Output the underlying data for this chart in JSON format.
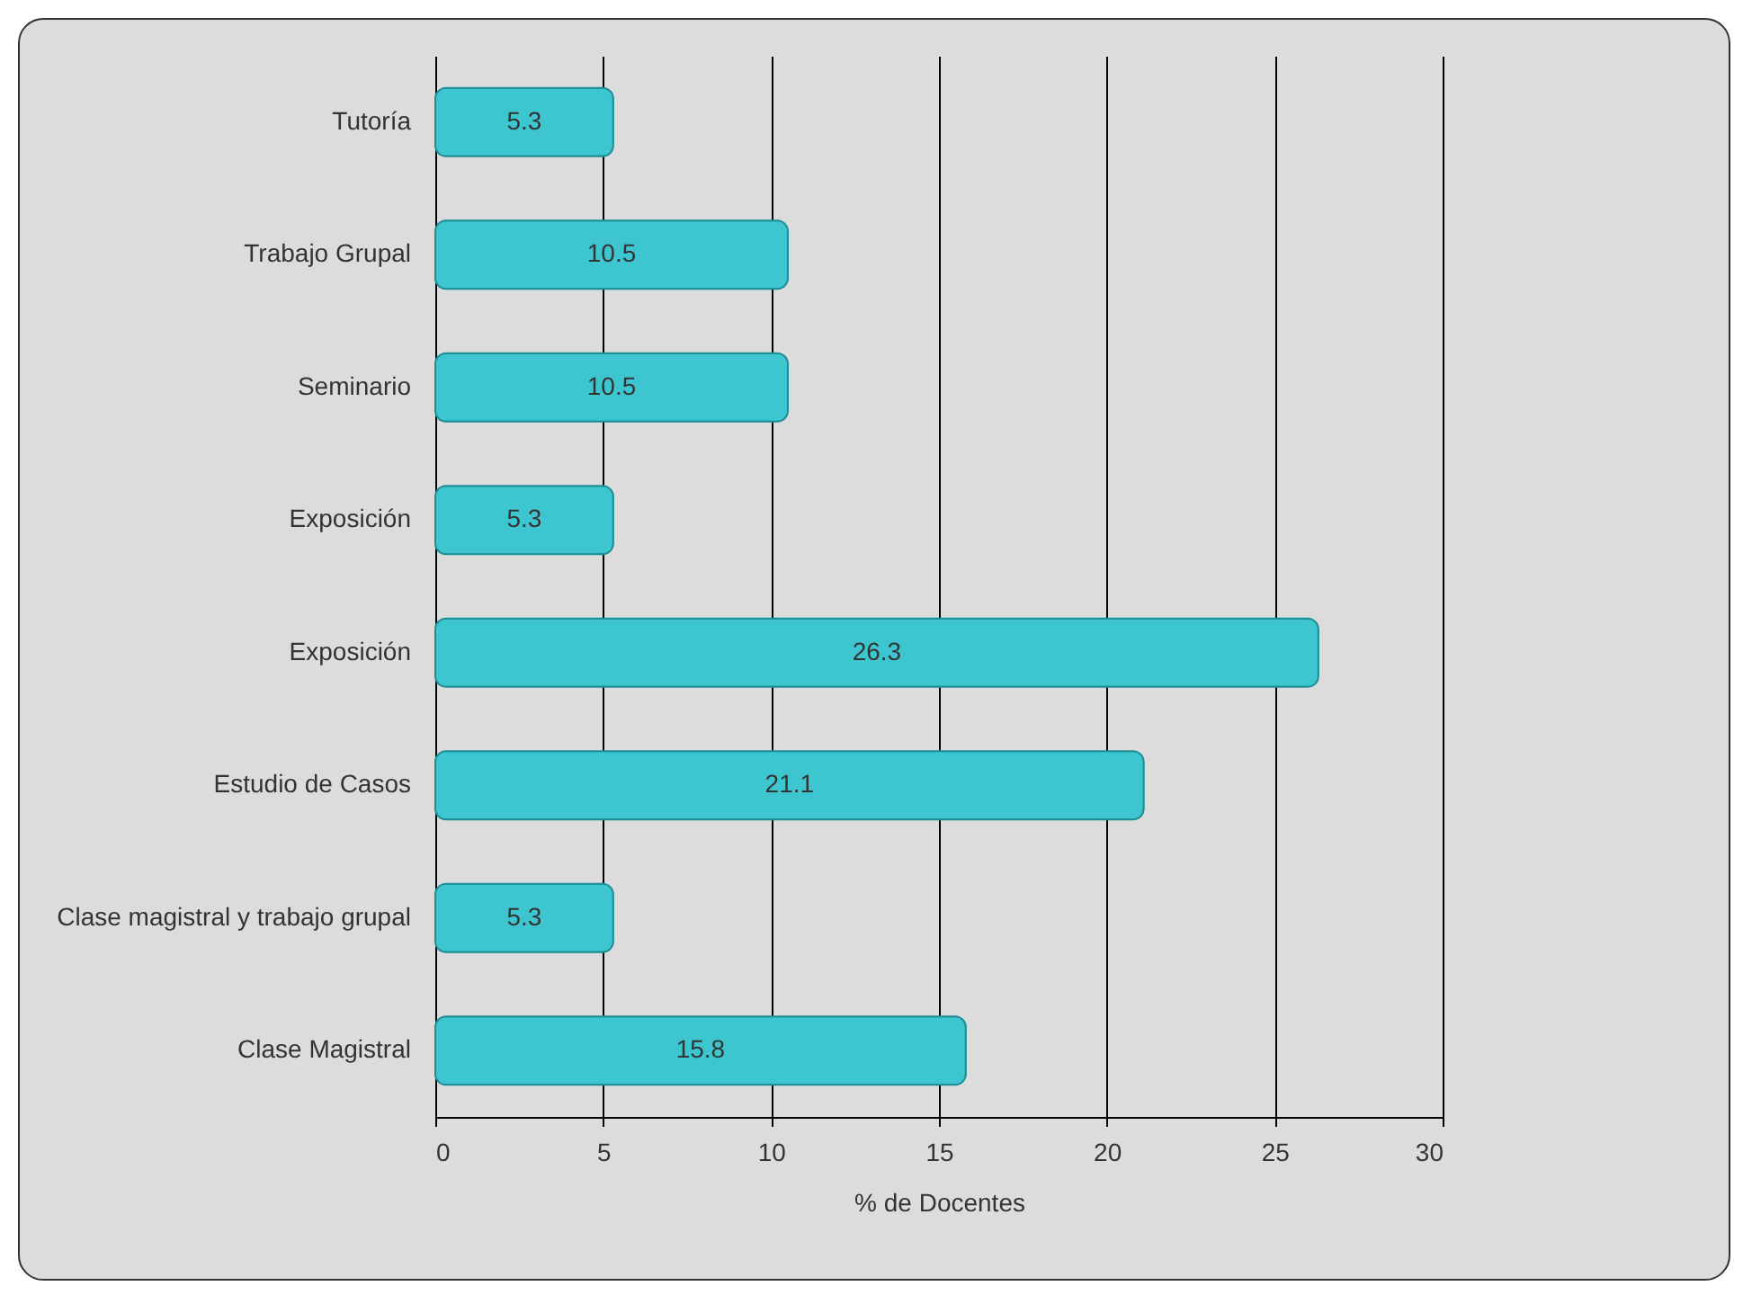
{
  "chart_data": {
    "type": "bar",
    "orientation": "horizontal",
    "xlabel": "% de Docentes",
    "categories": [
      "Tutoría",
      "Trabajo Grupal",
      "Seminario",
      "Exposición",
      "Exposición",
      "Estudio de Casos",
      "Clase magistral y trabajo grupal",
      "Clase Magistral"
    ],
    "values": [
      5.3,
      10.5,
      10.5,
      5.3,
      26.3,
      21.1,
      5.3,
      15.8
    ],
    "color": "#3ec6d0",
    "xlim": [
      0,
      30
    ],
    "xticks": [
      0,
      5,
      10,
      15,
      20,
      25,
      30
    ],
    "grid": "x",
    "data_labels": true
  }
}
